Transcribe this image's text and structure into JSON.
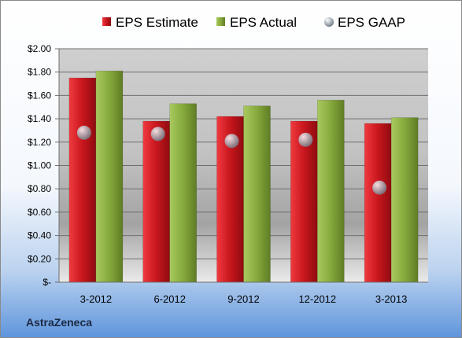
{
  "chart_data": {
    "type": "bar",
    "categories": [
      "3-2012",
      "6-2012",
      "9-2012",
      "12-2012",
      "3-2013"
    ],
    "series": [
      {
        "name": "EPS Estimate",
        "kind": "bar",
        "color": "#c8161d",
        "values": [
          1.75,
          1.38,
          1.42,
          1.38,
          1.36
        ]
      },
      {
        "name": "EPS Actual",
        "kind": "bar",
        "color": "#8db040",
        "values": [
          1.81,
          1.53,
          1.51,
          1.56,
          1.41
        ]
      },
      {
        "name": "EPS GAAP",
        "kind": "scatter",
        "color": "#9aa8b4",
        "values": [
          1.28,
          1.27,
          1.21,
          1.22,
          0.81
        ]
      }
    ],
    "y_ticks": [
      "$2.00",
      "$1.80",
      "$1.60",
      "$1.40",
      "$1.20",
      "$1.00",
      "$0.80",
      "$0.60",
      "$0.40",
      "$0.20",
      "$-"
    ],
    "ylim": [
      0,
      2.0
    ],
    "grid": true,
    "legend_position": "top",
    "footer_text": "AstraZeneca"
  }
}
